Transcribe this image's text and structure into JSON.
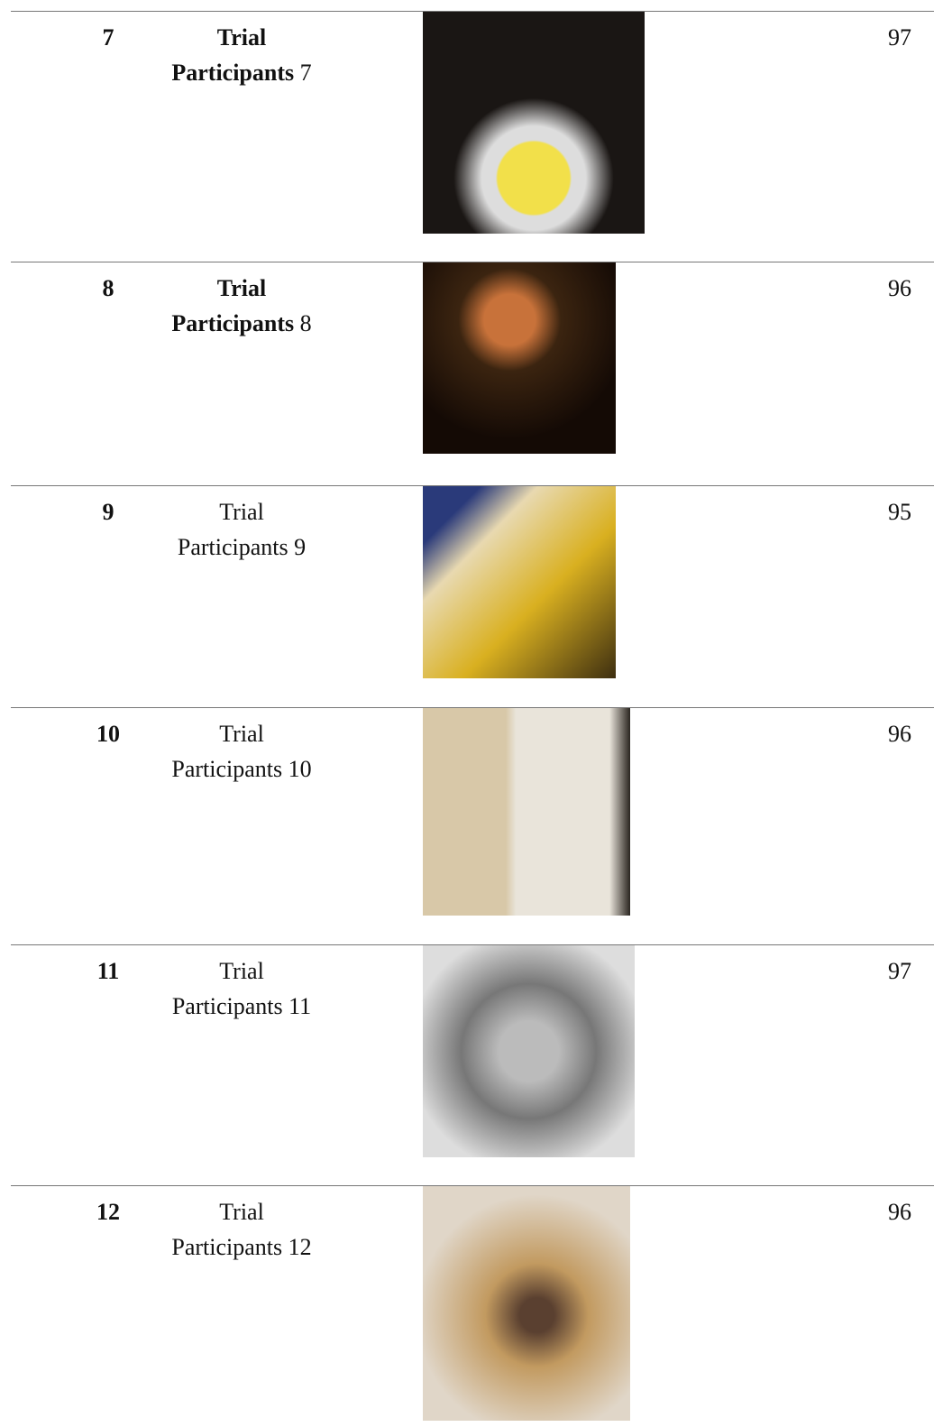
{
  "table": {
    "rows": [
      {
        "no": "7",
        "label": "Trial",
        "label2": "Participants",
        "label_no": "7",
        "score": "97",
        "label_bold": true
      },
      {
        "no": "8",
        "label": "Trial",
        "label2": "Participants",
        "label_no": "8",
        "score": "96",
        "label_bold": true
      },
      {
        "no": "9",
        "label": "Trial",
        "label2": "Participants",
        "label_no": "9",
        "score": "95",
        "label_bold": false
      },
      {
        "no": "10",
        "label": "Trial",
        "label2": "Participants",
        "label_no": "10",
        "score": "96",
        "label_bold": false
      },
      {
        "no": "11",
        "label": "Trial",
        "label2": "Participants",
        "label_no": "11",
        "score": "97",
        "label_bold": false
      },
      {
        "no": "12",
        "label": "Trial",
        "label2": "Participants",
        "label_no": "12",
        "score": "96",
        "label_bold": false
      }
    ]
  }
}
